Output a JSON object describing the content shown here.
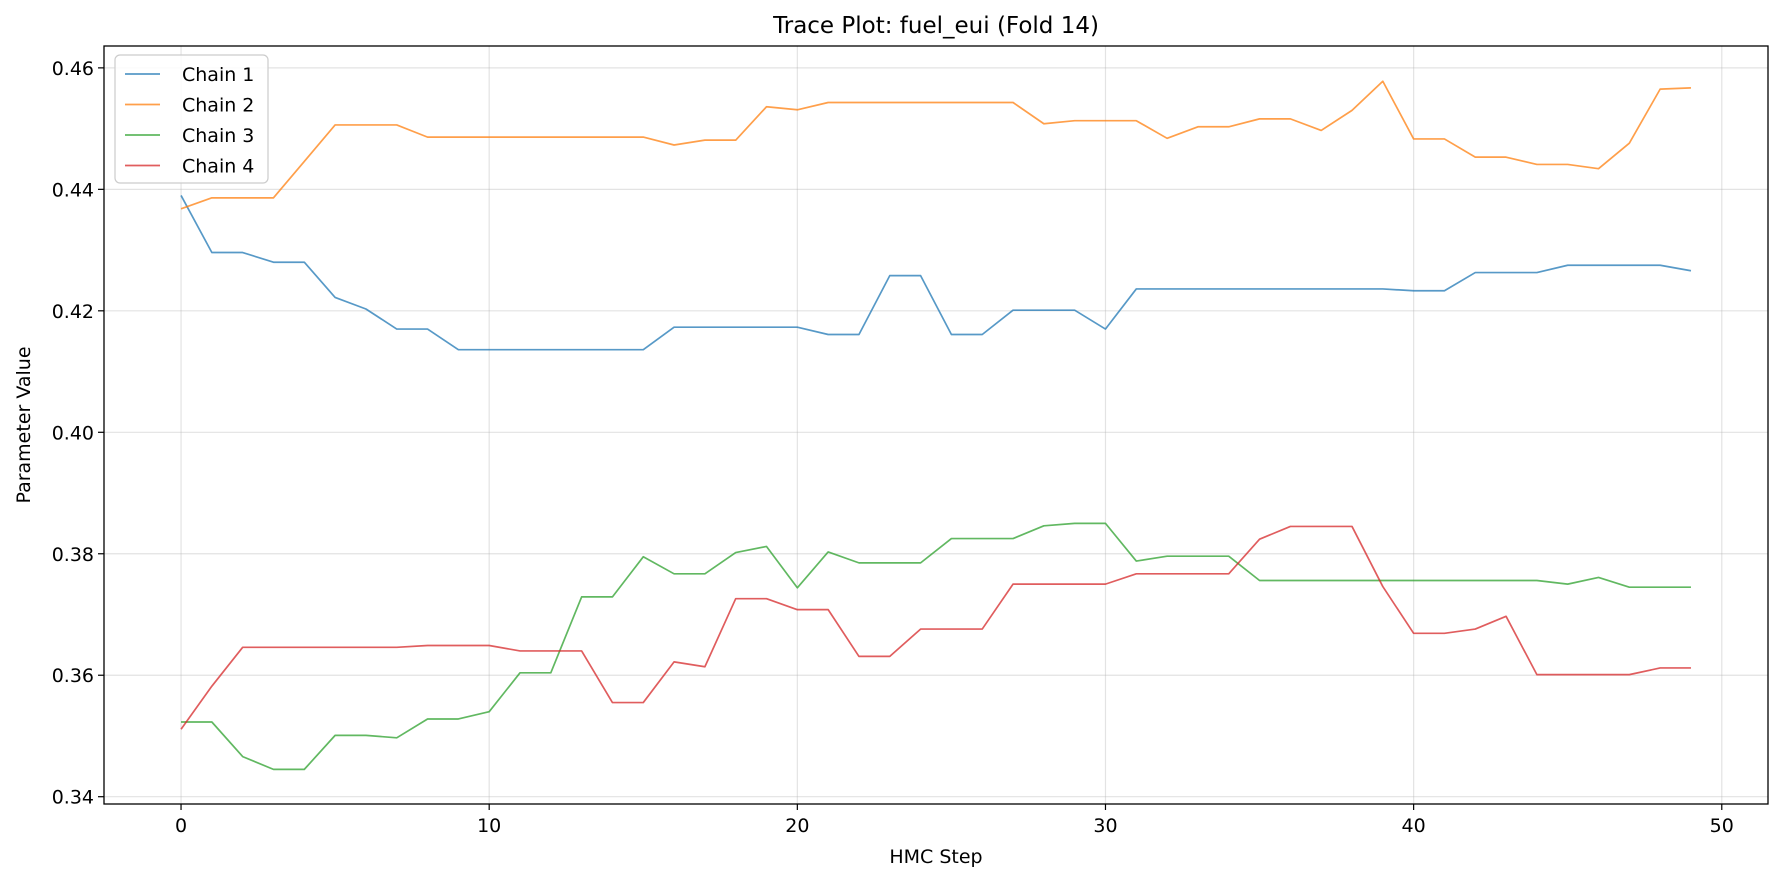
{
  "chart_data": {
    "type": "line",
    "title": "Trace Plot: fuel_eui (Fold 14)",
    "xlabel": "HMC Step",
    "ylabel": "Parameter Value",
    "xlim": [
      -2.5,
      51.5
    ],
    "ylim": [
      0.3388,
      0.4636
    ],
    "xticks": [
      0,
      10,
      20,
      30,
      40,
      50
    ],
    "yticks": [
      0.34,
      0.36,
      0.38,
      0.4,
      0.42,
      0.44,
      0.46
    ],
    "xtick_labels": [
      "0",
      "10",
      "20",
      "30",
      "40",
      "50"
    ],
    "ytick_labels": [
      "0.34",
      "0.36",
      "0.38",
      "0.40",
      "0.42",
      "0.44",
      "0.46"
    ],
    "grid": true,
    "legend_position": "upper-left",
    "x": [
      0,
      1,
      2,
      3,
      4,
      5,
      6,
      7,
      8,
      9,
      10,
      11,
      12,
      13,
      14,
      15,
      16,
      17,
      18,
      19,
      20,
      21,
      22,
      23,
      24,
      25,
      26,
      27,
      28,
      29,
      30,
      31,
      32,
      33,
      34,
      35,
      36,
      37,
      38,
      39,
      40,
      41,
      42,
      43,
      44,
      45,
      46,
      47,
      48,
      49
    ],
    "series": [
      {
        "name": "Chain 1",
        "color": "#1f77b4",
        "values": [
          0.439,
          0.4296,
          0.4296,
          0.428,
          0.428,
          0.4222,
          0.4203,
          0.417,
          0.417,
          0.4136,
          0.4136,
          0.4136,
          0.4136,
          0.4136,
          0.4136,
          0.4136,
          0.4173,
          0.4173,
          0.4173,
          0.4173,
          0.4173,
          0.4161,
          0.4161,
          0.4258,
          0.4258,
          0.4161,
          0.4161,
          0.4201,
          0.4201,
          0.4201,
          0.417,
          0.4236,
          0.4236,
          0.4236,
          0.4236,
          0.4236,
          0.4236,
          0.4236,
          0.4236,
          0.4236,
          0.4233,
          0.4233,
          0.4263,
          0.4263,
          0.4263,
          0.4275,
          0.4275,
          0.4275,
          0.4275,
          0.4266
        ]
      },
      {
        "name": "Chain 2",
        "color": "#ff7f0e",
        "values": [
          0.4368,
          0.4386,
          0.4386,
          0.4386,
          0.4446,
          0.4506,
          0.4506,
          0.4506,
          0.4486,
          0.4486,
          0.4486,
          0.4486,
          0.4486,
          0.4486,
          0.4486,
          0.4486,
          0.4473,
          0.4481,
          0.4481,
          0.4536,
          0.4531,
          0.4543,
          0.4543,
          0.4543,
          0.4543,
          0.4543,
          0.4543,
          0.4543,
          0.4508,
          0.4513,
          0.4513,
          0.4513,
          0.4484,
          0.4503,
          0.4503,
          0.4516,
          0.4516,
          0.4497,
          0.453,
          0.4578,
          0.4483,
          0.4483,
          0.4453,
          0.4453,
          0.4441,
          0.4441,
          0.4434,
          0.4476,
          0.4565,
          0.4567
        ]
      },
      {
        "name": "Chain 3",
        "color": "#2ca02c",
        "values": [
          0.3523,
          0.3523,
          0.3466,
          0.3445,
          0.3445,
          0.3501,
          0.3501,
          0.3497,
          0.3528,
          0.3528,
          0.354,
          0.3604,
          0.3604,
          0.3729,
          0.3729,
          0.3795,
          0.3767,
          0.3767,
          0.3802,
          0.3812,
          0.3744,
          0.3803,
          0.3785,
          0.3785,
          0.3785,
          0.3825,
          0.3825,
          0.3825,
          0.3846,
          0.385,
          0.385,
          0.3788,
          0.3796,
          0.3796,
          0.3796,
          0.3756,
          0.3756,
          0.3756,
          0.3756,
          0.3756,
          0.3756,
          0.3756,
          0.3756,
          0.3756,
          0.3756,
          0.375,
          0.3761,
          0.3745,
          0.3745,
          0.3745
        ]
      },
      {
        "name": "Chain 4",
        "color": "#d62728",
        "values": [
          0.3511,
          0.3582,
          0.3646,
          0.3646,
          0.3646,
          0.3646,
          0.3646,
          0.3646,
          0.3649,
          0.3649,
          0.3649,
          0.364,
          0.364,
          0.364,
          0.3555,
          0.3555,
          0.3622,
          0.3614,
          0.3726,
          0.3726,
          0.3708,
          0.3708,
          0.3631,
          0.3631,
          0.3676,
          0.3676,
          0.3676,
          0.375,
          0.375,
          0.375,
          0.375,
          0.3767,
          0.3767,
          0.3767,
          0.3767,
          0.3824,
          0.3845,
          0.3845,
          0.3845,
          0.3746,
          0.3669,
          0.3669,
          0.3676,
          0.3697,
          0.3601,
          0.3601,
          0.3601,
          0.3601,
          0.3612,
          0.3612
        ]
      }
    ]
  }
}
